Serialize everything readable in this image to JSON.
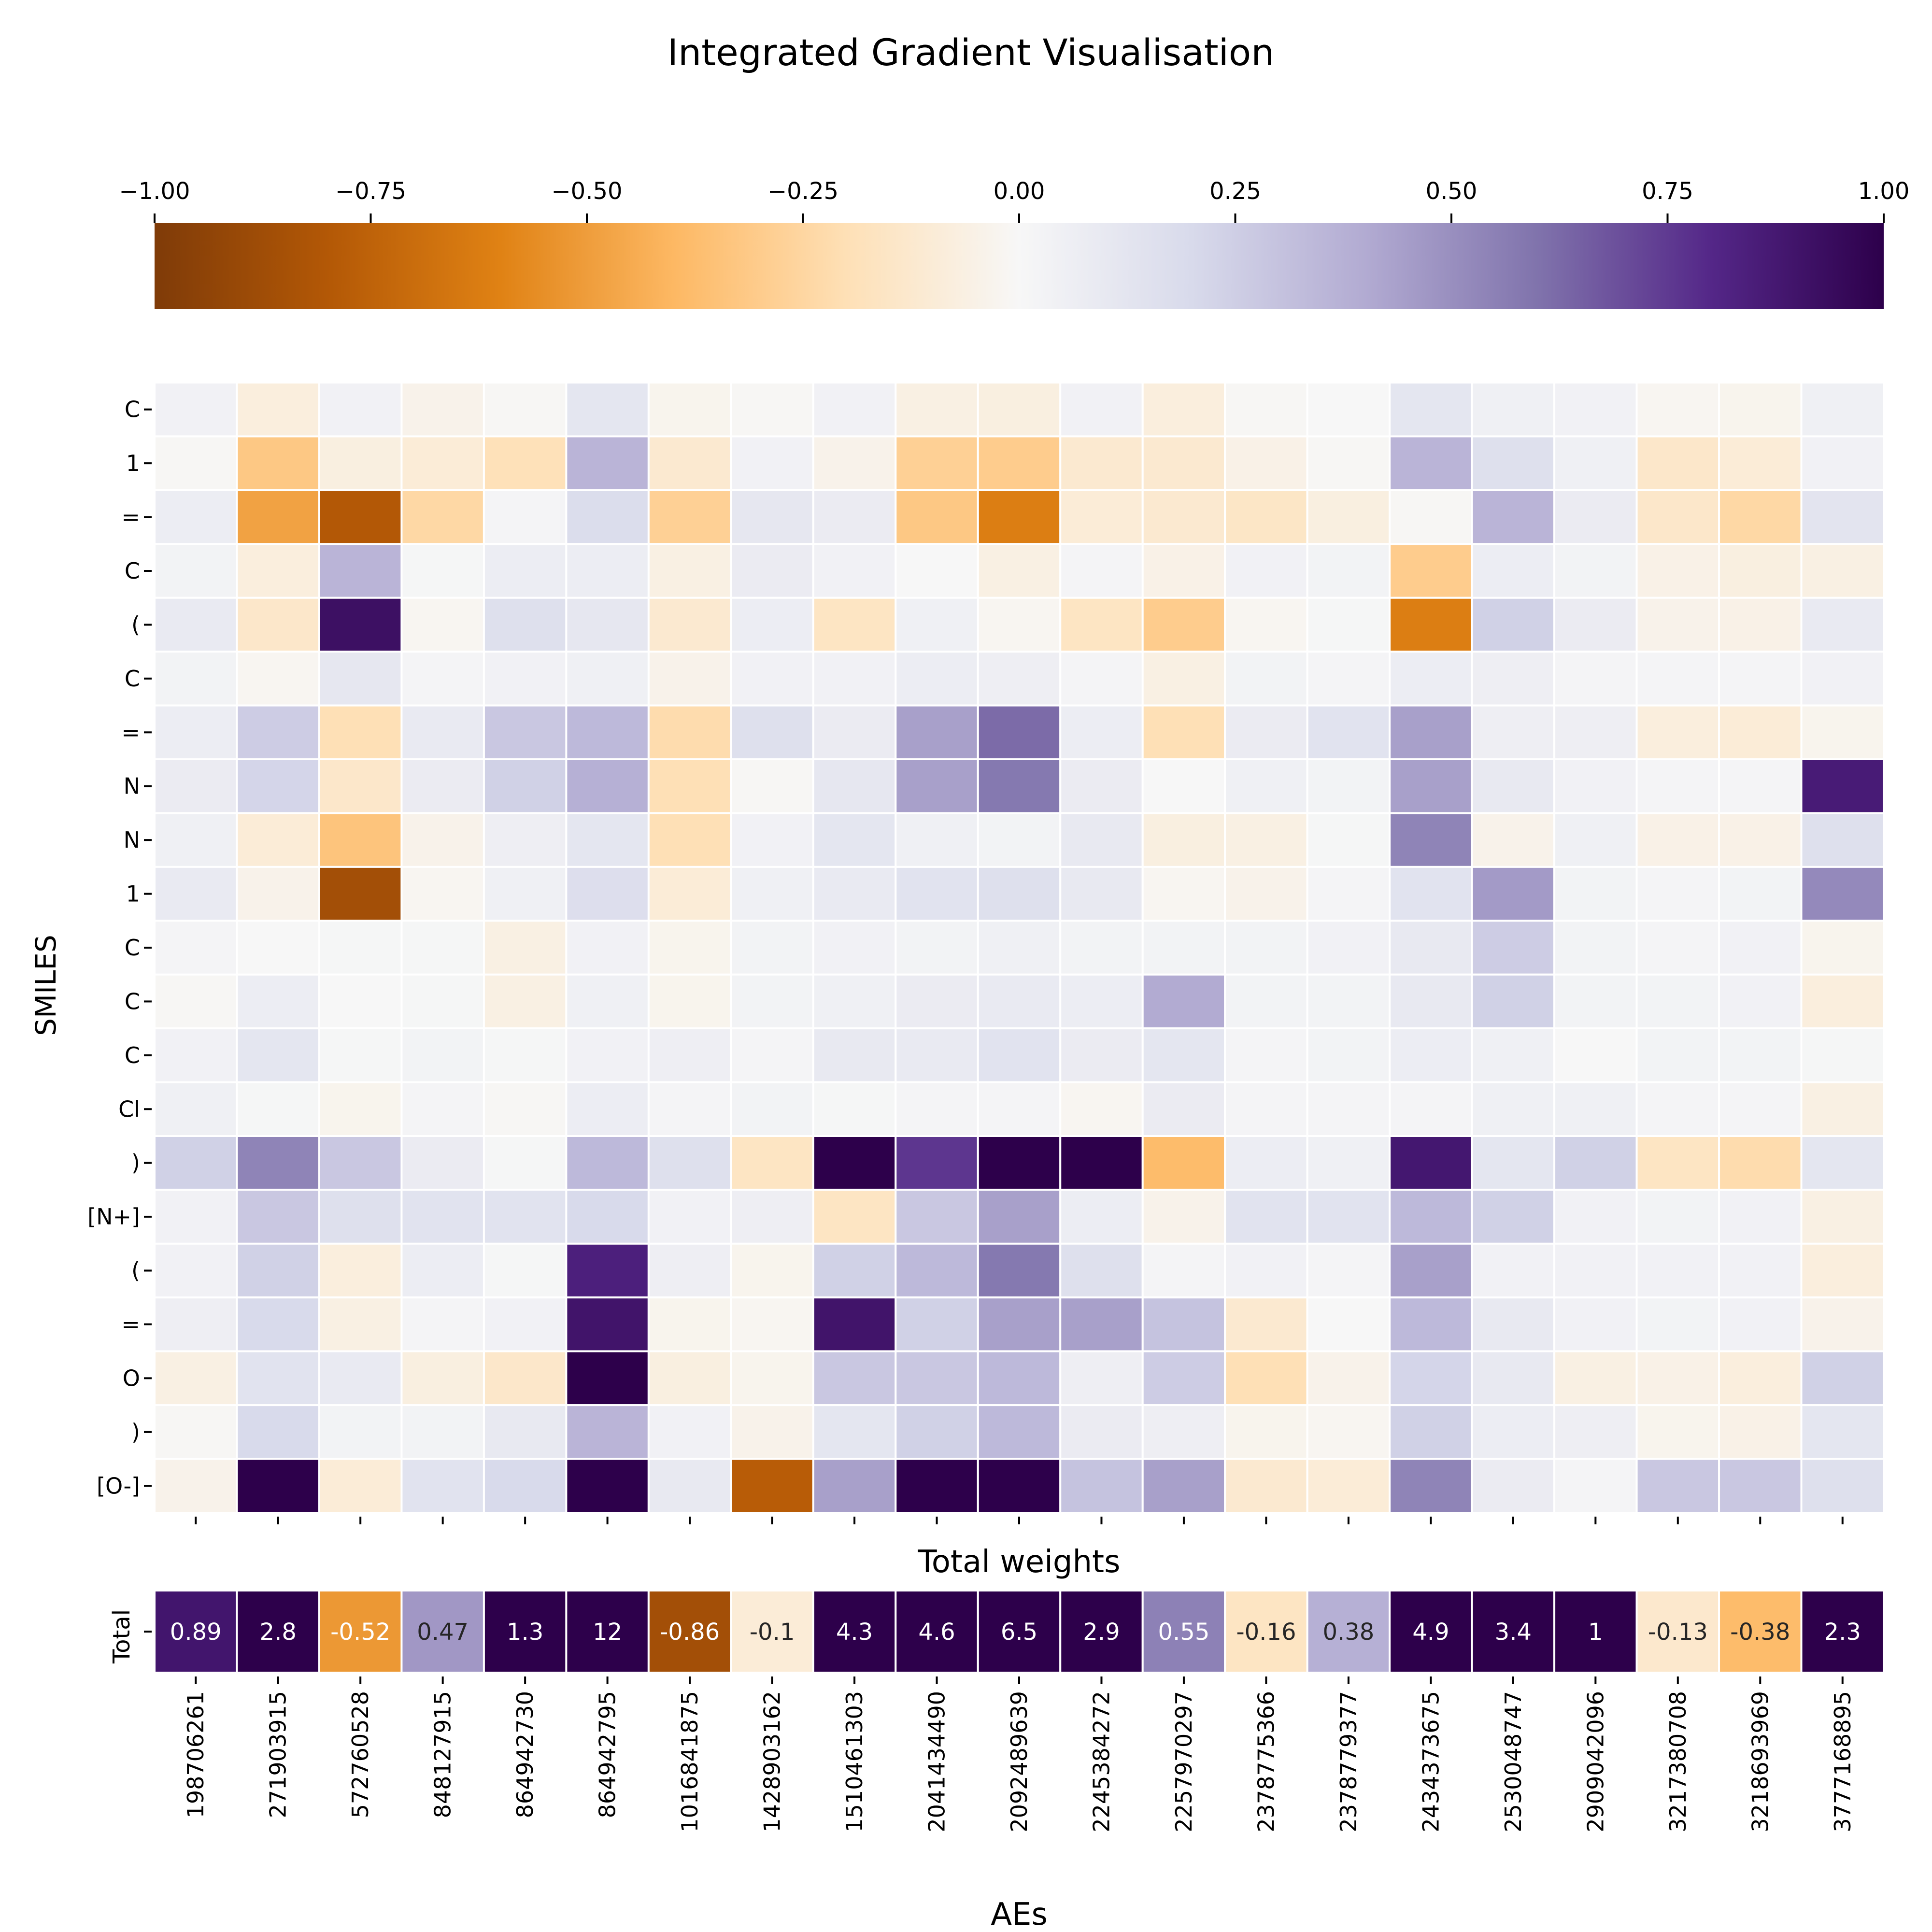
{
  "chart_data": {
    "type": "heatmap",
    "title": "Integrated Gradient Visualisation",
    "xlabel": "AEs",
    "ylabel": "SMILES",
    "colorbar": {
      "min": -1.0,
      "max": 1.0,
      "ticks": [
        -1.0,
        -0.75,
        -0.5,
        -0.25,
        0.0,
        0.25,
        0.5,
        0.75,
        1.0
      ],
      "tick_labels": [
        "−1.00",
        "−0.75",
        "−0.50",
        "−0.25",
        "0.00",
        "0.25",
        "0.50",
        "0.75",
        "1.00"
      ],
      "placement": "top",
      "colormap_stops": [
        "#7f3b08",
        "#b35806",
        "#e08214",
        "#fdb863",
        "#fee0b6",
        "#f7f7f7",
        "#d8daeb",
        "#b2abd2",
        "#8073ac",
        "#542788",
        "#2d004b"
      ]
    },
    "columns": [
      "198706261",
      "271903915",
      "572760528",
      "848127915",
      "864942730",
      "864942795",
      "1016841875",
      "1428903162",
      "1510461303",
      "2041434490",
      "2092489639",
      "2245384272",
      "2257970297",
      "2378775366",
      "2378779377",
      "2434373675",
      "2530048747",
      "2909042096",
      "3217380708",
      "3218693969",
      "3777168895"
    ],
    "rows": [
      "C",
      "1",
      "=",
      "C",
      "(",
      "C",
      "=",
      "N",
      "N",
      "1",
      "C",
      "C",
      "C",
      "Cl",
      ")",
      "[N+]",
      "(",
      "=",
      "O",
      ")",
      "[O-]"
    ],
    "values": [
      [
        0.04,
        -0.08,
        0.04,
        -0.04,
        -0.01,
        0.12,
        -0.03,
        -0.01,
        0.04,
        -0.06,
        -0.07,
        0.04,
        -0.08,
        -0.01,
        0.0,
        0.12,
        0.05,
        0.04,
        -0.02,
        -0.03,
        0.05
      ],
      [
        -0.01,
        -0.32,
        -0.07,
        -0.1,
        -0.19,
        0.36,
        -0.12,
        0.04,
        -0.04,
        -0.28,
        -0.3,
        -0.12,
        -0.12,
        -0.05,
        -0.01,
        0.36,
        0.16,
        0.05,
        -0.14,
        -0.1,
        0.04
      ],
      [
        0.07,
        -0.48,
        -0.8,
        -0.24,
        0.02,
        0.18,
        -0.28,
        0.11,
        0.08,
        -0.32,
        -0.62,
        -0.1,
        -0.12,
        -0.15,
        -0.07,
        -0.01,
        0.36,
        0.08,
        -0.14,
        -0.24,
        0.13
      ],
      [
        0.03,
        -0.08,
        0.36,
        0.01,
        0.07,
        0.07,
        -0.06,
        0.08,
        0.04,
        0.0,
        -0.06,
        0.02,
        -0.05,
        0.04,
        0.03,
        -0.3,
        0.07,
        0.03,
        -0.05,
        -0.07,
        -0.06
      ],
      [
        0.09,
        -0.14,
        0.92,
        -0.02,
        0.16,
        0.11,
        -0.12,
        0.07,
        -0.16,
        0.05,
        -0.02,
        -0.16,
        -0.3,
        -0.02,
        0.01,
        -0.62,
        0.24,
        0.08,
        -0.04,
        -0.05,
        0.09
      ],
      [
        0.03,
        -0.02,
        0.11,
        0.02,
        0.04,
        0.05,
        -0.04,
        0.04,
        0.04,
        0.07,
        0.06,
        0.02,
        -0.06,
        0.03,
        0.02,
        0.07,
        0.06,
        0.02,
        0.02,
        0.02,
        0.04
      ],
      [
        0.07,
        0.26,
        -0.2,
        0.09,
        0.28,
        0.34,
        -0.22,
        0.16,
        0.08,
        0.44,
        0.62,
        0.07,
        -0.2,
        0.08,
        0.14,
        0.44,
        0.06,
        0.06,
        -0.08,
        -0.1,
        -0.03
      ],
      [
        0.08,
        0.22,
        -0.14,
        0.08,
        0.24,
        0.38,
        -0.2,
        -0.01,
        0.11,
        0.44,
        0.58,
        0.08,
        0.0,
        0.05,
        0.03,
        0.44,
        0.1,
        0.04,
        0.02,
        0.02,
        0.86
      ],
      [
        0.05,
        -0.1,
        -0.34,
        -0.04,
        0.06,
        0.12,
        -0.2,
        0.04,
        0.12,
        0.05,
        0.03,
        0.1,
        -0.07,
        -0.06,
        0.01,
        0.54,
        -0.04,
        0.05,
        -0.05,
        -0.05,
        0.16
      ],
      [
        0.09,
        -0.04,
        -0.86,
        -0.02,
        0.05,
        0.17,
        -0.1,
        0.05,
        0.09,
        0.14,
        0.16,
        0.1,
        -0.02,
        -0.04,
        0.02,
        0.14,
        0.46,
        0.03,
        0.02,
        0.03,
        0.52
      ],
      [
        0.02,
        0.0,
        0.01,
        0.01,
        -0.06,
        0.04,
        -0.03,
        0.03,
        0.04,
        0.03,
        0.05,
        0.03,
        0.03,
        0.03,
        0.04,
        0.1,
        0.26,
        0.03,
        0.02,
        0.04,
        -0.03
      ],
      [
        -0.01,
        0.07,
        0.0,
        0.01,
        -0.06,
        0.05,
        -0.03,
        0.03,
        0.05,
        0.08,
        0.09,
        0.07,
        0.4,
        0.03,
        0.03,
        0.1,
        0.24,
        0.03,
        0.03,
        0.04,
        -0.08
      ],
      [
        0.04,
        0.12,
        0.01,
        0.03,
        0.01,
        0.04,
        0.06,
        0.02,
        0.1,
        0.09,
        0.14,
        0.08,
        0.12,
        0.02,
        0.03,
        0.07,
        0.05,
        0.0,
        0.03,
        0.03,
        0.01
      ],
      [
        0.05,
        0.01,
        -0.03,
        0.02,
        -0.01,
        0.07,
        0.02,
        0.03,
        0.01,
        0.02,
        0.02,
        -0.02,
        0.08,
        0.02,
        0.02,
        0.02,
        0.05,
        0.05,
        0.02,
        0.02,
        -0.06
      ],
      [
        0.24,
        0.54,
        0.28,
        0.08,
        0.01,
        0.34,
        0.16,
        -0.16,
        1.0,
        0.76,
        1.0,
        1.0,
        -0.38,
        0.07,
        0.05,
        0.88,
        0.12,
        0.24,
        -0.16,
        -0.22,
        0.12
      ],
      [
        0.04,
        0.28,
        0.16,
        0.14,
        0.14,
        0.2,
        0.04,
        0.06,
        -0.16,
        0.28,
        0.44,
        0.07,
        -0.04,
        0.14,
        0.14,
        0.34,
        0.24,
        0.04,
        0.03,
        0.04,
        -0.06
      ],
      [
        0.04,
        0.24,
        -0.08,
        0.07,
        0.01,
        0.84,
        0.06,
        -0.03,
        0.24,
        0.34,
        0.58,
        0.16,
        0.02,
        0.04,
        0.02,
        0.44,
        0.04,
        0.04,
        0.04,
        0.04,
        -0.08
      ],
      [
        0.06,
        0.2,
        -0.06,
        0.02,
        0.04,
        0.9,
        -0.03,
        -0.02,
        0.9,
        0.24,
        0.44,
        0.44,
        0.3,
        -0.12,
        0.0,
        0.34,
        0.1,
        0.04,
        0.03,
        0.04,
        -0.04
      ],
      [
        -0.06,
        0.14,
        0.09,
        -0.07,
        -0.14,
        1.0,
        -0.07,
        -0.03,
        0.28,
        0.28,
        0.34,
        0.06,
        0.26,
        -0.2,
        -0.04,
        0.22,
        0.1,
        -0.06,
        -0.05,
        -0.08,
        0.24
      ],
      [
        -0.01,
        0.2,
        0.03,
        0.03,
        0.1,
        0.36,
        0.04,
        -0.04,
        0.12,
        0.24,
        0.34,
        0.08,
        0.06,
        -0.03,
        -0.02,
        0.24,
        0.07,
        0.06,
        -0.03,
        -0.05,
        0.12
      ],
      [
        -0.04,
        1.0,
        -0.1,
        0.14,
        0.2,
        1.0,
        0.1,
        -0.78,
        0.44,
        1.0,
        1.0,
        0.3,
        0.44,
        -0.12,
        -0.1,
        0.54,
        0.08,
        0.02,
        0.28,
        0.28,
        0.16
      ]
    ],
    "totals": {
      "title": "Total weights",
      "row_label": "Total",
      "values": [
        0.89,
        2.8,
        -0.52,
        0.47,
        1.3,
        12,
        -0.86,
        -0.1,
        4.3,
        4.6,
        6.5,
        2.9,
        0.55,
        -0.16,
        0.38,
        4.9,
        3.4,
        1,
        -0.13,
        -0.38,
        2.3
      ],
      "labels": [
        "0.89",
        "2.8",
        "-0.52",
        "0.47",
        "1.3",
        "12",
        "-0.86",
        "-0.1",
        "4.3",
        "4.6",
        "6.5",
        "2.9",
        "0.55",
        "-0.16",
        "0.38",
        "4.9",
        "3.4",
        "1",
        "-0.13",
        "-0.38",
        "2.3"
      ],
      "label_color_threshold": 0.5
    }
  }
}
